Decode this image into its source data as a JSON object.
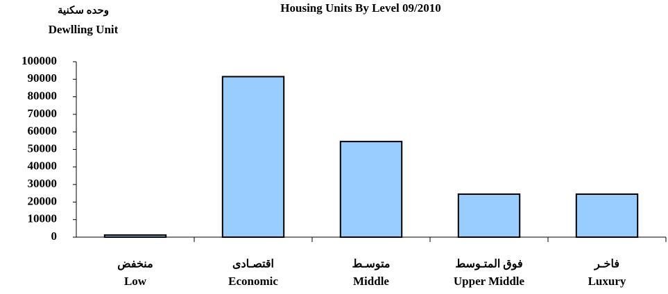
{
  "chart_data": {
    "type": "bar",
    "title": "Housing Units  By Level  09/2010",
    "ylabel_ar": "وحده سكنية",
    "ylabel": "Dewlling Unit",
    "categories": [
      "Low",
      "Economic",
      "Middle",
      "Upper Middle",
      "Luxury"
    ],
    "categories_ar": [
      "منخفض",
      "اقتصـادى",
      "متوسـط",
      "فوق المتـوسط",
      "فاخـر"
    ],
    "values": [
      1200,
      91500,
      54500,
      24500,
      24500
    ],
    "color": "#99ccff",
    "ylim": [
      0,
      100000
    ],
    "yticks": [
      0,
      10000,
      20000,
      30000,
      40000,
      50000,
      60000,
      70000,
      80000,
      90000,
      100000
    ],
    "grid": false
  }
}
